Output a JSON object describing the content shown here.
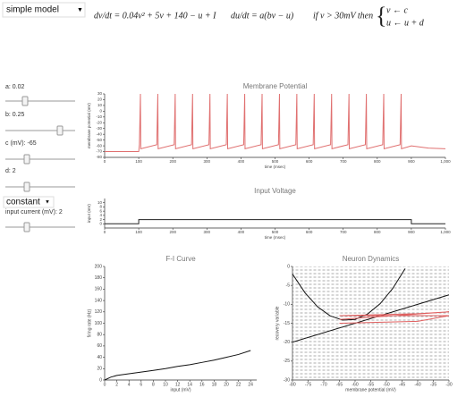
{
  "controls": {
    "model_select": "simple model",
    "equations": {
      "dv": "dv/dt = 0.04v² + 5v + 140 − u + I",
      "du": "du/dt = a(bv − u)",
      "condition": "if v > 30mV then",
      "reset_v": "v ← c",
      "reset_u": "u ← u + d"
    },
    "sliders": [
      "a: 0.02",
      "b: 0.25",
      "c (mV): -65",
      "d: 2",
      "input current (mV): 2"
    ],
    "input_select": "constant"
  },
  "chart_data": [
    {
      "type": "line",
      "title": "Membrane Potential",
      "xlabel": "time (msec)",
      "ylabel": "membrane potential (mV)",
      "xlim": [
        0,
        1000
      ],
      "ylim": [
        -80,
        30
      ],
      "xticks": [
        0,
        100,
        200,
        300,
        400,
        500,
        600,
        700,
        800,
        900,
        {
          "value": 1000,
          "label": "1,000"
        }
      ],
      "yticks": [
        -80,
        -70,
        -60,
        -50,
        -40,
        -30,
        -20,
        -10,
        0,
        10,
        20,
        30
      ],
      "series": [
        {
          "color": "#e07070",
          "x": [
            0,
            100,
            102,
            105,
            106,
            153,
            156,
            157,
            204,
            207,
            208,
            255,
            258,
            259,
            306,
            309,
            310,
            357,
            360,
            361,
            408,
            411,
            412,
            459,
            462,
            463,
            510,
            513,
            514,
            561,
            564,
            565,
            612,
            615,
            616,
            663,
            666,
            667,
            714,
            717,
            718,
            765,
            768,
            769,
            816,
            819,
            820,
            867,
            870,
            871,
            900,
            950,
            1000
          ],
          "values": [
            -70,
            -70,
            -58,
            30,
            -65,
            -58,
            30,
            -65,
            -58,
            30,
            -65,
            -58,
            30,
            -65,
            -58,
            30,
            -65,
            -58,
            30,
            -65,
            -58,
            30,
            -65,
            -58,
            30,
            -65,
            -58,
            30,
            -65,
            -58,
            30,
            -65,
            -58,
            30,
            -65,
            -58,
            30,
            -65,
            -58,
            30,
            -65,
            -58,
            30,
            -65,
            -58,
            30,
            -65,
            -58,
            30,
            -65,
            -60,
            -64,
            -65
          ]
        }
      ]
    },
    {
      "type": "line",
      "title": "Input Voltage",
      "xlabel": "time (msec)",
      "ylabel": "input (mV)",
      "xlim": [
        0,
        1000
      ],
      "ylim": [
        -2,
        12
      ],
      "xticks": [
        0,
        100,
        200,
        300,
        400,
        500,
        600,
        700,
        800,
        900,
        {
          "value": 1000,
          "label": "1,000"
        }
      ],
      "yticks": [
        0,
        2,
        4,
        6,
        8,
        10
      ],
      "series": [
        {
          "color": "#222222",
          "x": [
            0,
            100,
            100,
            900,
            900,
            1000
          ],
          "values": [
            0,
            0,
            2,
            2,
            0,
            0
          ]
        }
      ]
    },
    {
      "type": "line",
      "title": "F-I Curve",
      "xlabel": "input (mV)",
      "ylabel": "firing rate (Hz)",
      "xlim": [
        0,
        25
      ],
      "ylim": [
        0,
        200
      ],
      "xticks": [
        0,
        2,
        4,
        6,
        8,
        10,
        12,
        14,
        16,
        18,
        20,
        22,
        24
      ],
      "yticks": [
        0,
        20,
        40,
        60,
        80,
        100,
        120,
        140,
        160,
        180,
        200
      ],
      "series": [
        {
          "color": "#111111",
          "x": [
            0,
            1,
            2,
            4,
            6,
            8,
            10,
            12,
            14,
            16,
            18,
            20,
            22,
            24
          ],
          "values": [
            0,
            5,
            8,
            11,
            14,
            17,
            20,
            24,
            27,
            31,
            35,
            40,
            45,
            52
          ]
        }
      ]
    },
    {
      "type": "line",
      "title": "Neuron Dynamics",
      "xlabel": "membrane potential (mV)",
      "ylabel": "recovery variable",
      "xlim": [
        -80,
        -30
      ],
      "ylim": [
        -30,
        0
      ],
      "xticks": [
        -80,
        -75,
        -70,
        -65,
        -60,
        -55,
        -50,
        -45,
        -40,
        -35,
        -30
      ],
      "yticks": [
        -30,
        -25,
        -20,
        -15,
        -10,
        -5,
        0
      ],
      "vector_field": true,
      "series": [
        {
          "color": "#111111",
          "x": [
            -80,
            -76,
            -72,
            -68,
            -64,
            -60,
            -56,
            -52,
            -48,
            -44
          ],
          "values": [
            -2,
            -6.96,
            -10.64,
            -13.04,
            -14.16,
            -14,
            -12.56,
            -9.84,
            -5.84,
            -0.56
          ]
        },
        {
          "color": "#111111",
          "x": [
            -80,
            -30
          ],
          "values": [
            -20,
            -7.5
          ]
        },
        {
          "color": "#e06060",
          "x": [
            -65,
            -40,
            -30,
            -65,
            -40,
            -30,
            -65
          ],
          "values": [
            -15,
            -14.5,
            -13,
            -13,
            -12.5,
            -12,
            -14
          ]
        }
      ]
    }
  ]
}
